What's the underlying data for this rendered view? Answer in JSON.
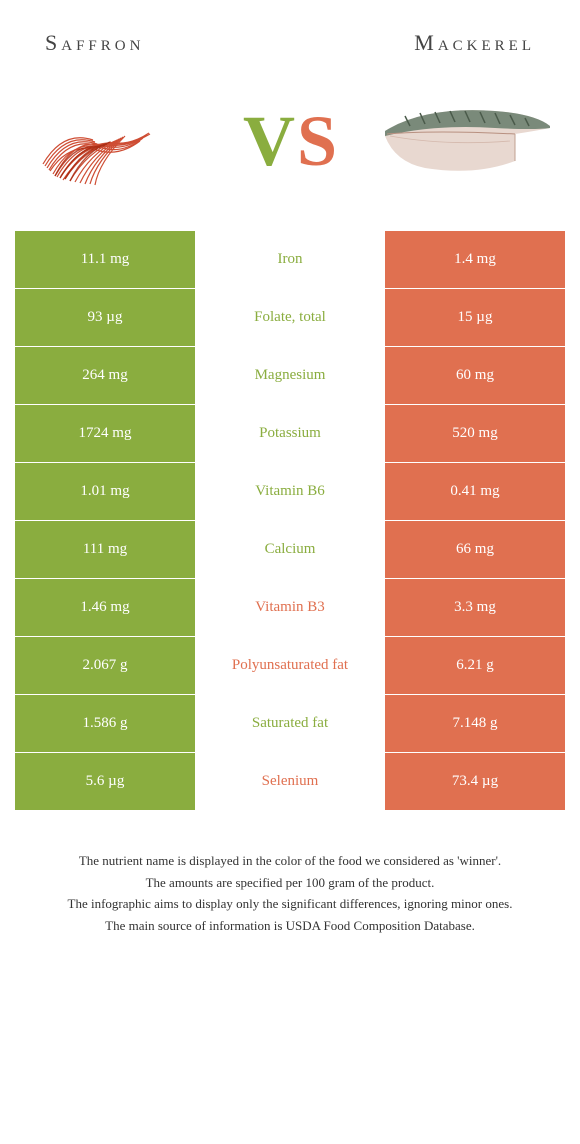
{
  "header": {
    "left": "Saffron",
    "right": "Mackerel"
  },
  "vs": {
    "v": "V",
    "s": "S"
  },
  "colors": {
    "left": "#8aad3f",
    "right": "#e07050",
    "left_text_winner": "#8aad3f",
    "right_text_winner": "#e07050"
  },
  "rows": [
    {
      "left": "11.1 mg",
      "label": "Iron",
      "right": "1.4 mg",
      "winner": "left"
    },
    {
      "left": "93 µg",
      "label": "Folate, total",
      "right": "15 µg",
      "winner": "left"
    },
    {
      "left": "264 mg",
      "label": "Magnesium",
      "right": "60 mg",
      "winner": "left"
    },
    {
      "left": "1724 mg",
      "label": "Potassium",
      "right": "520 mg",
      "winner": "left"
    },
    {
      "left": "1.01 mg",
      "label": "Vitamin B6",
      "right": "0.41 mg",
      "winner": "left"
    },
    {
      "left": "111 mg",
      "label": "Calcium",
      "right": "66 mg",
      "winner": "left"
    },
    {
      "left": "1.46 mg",
      "label": "Vitamin B3",
      "right": "3.3 mg",
      "winner": "right"
    },
    {
      "left": "2.067 g",
      "label": "Polyunsaturated fat",
      "right": "6.21 g",
      "winner": "right"
    },
    {
      "left": "1.586 g",
      "label": "Saturated fat",
      "right": "7.148 g",
      "winner": "left"
    },
    {
      "left": "5.6 µg",
      "label": "Selenium",
      "right": "73.4 µg",
      "winner": "right"
    }
  ],
  "footer": {
    "line1": "The nutrient name is displayed in the color of the food we considered as 'winner'.",
    "line2": "The amounts are specified per 100 gram of the product.",
    "line3": "The infographic aims to display only the significant differences, ignoring minor ones.",
    "line4": "The main source of information is USDA Food Composition Database."
  }
}
